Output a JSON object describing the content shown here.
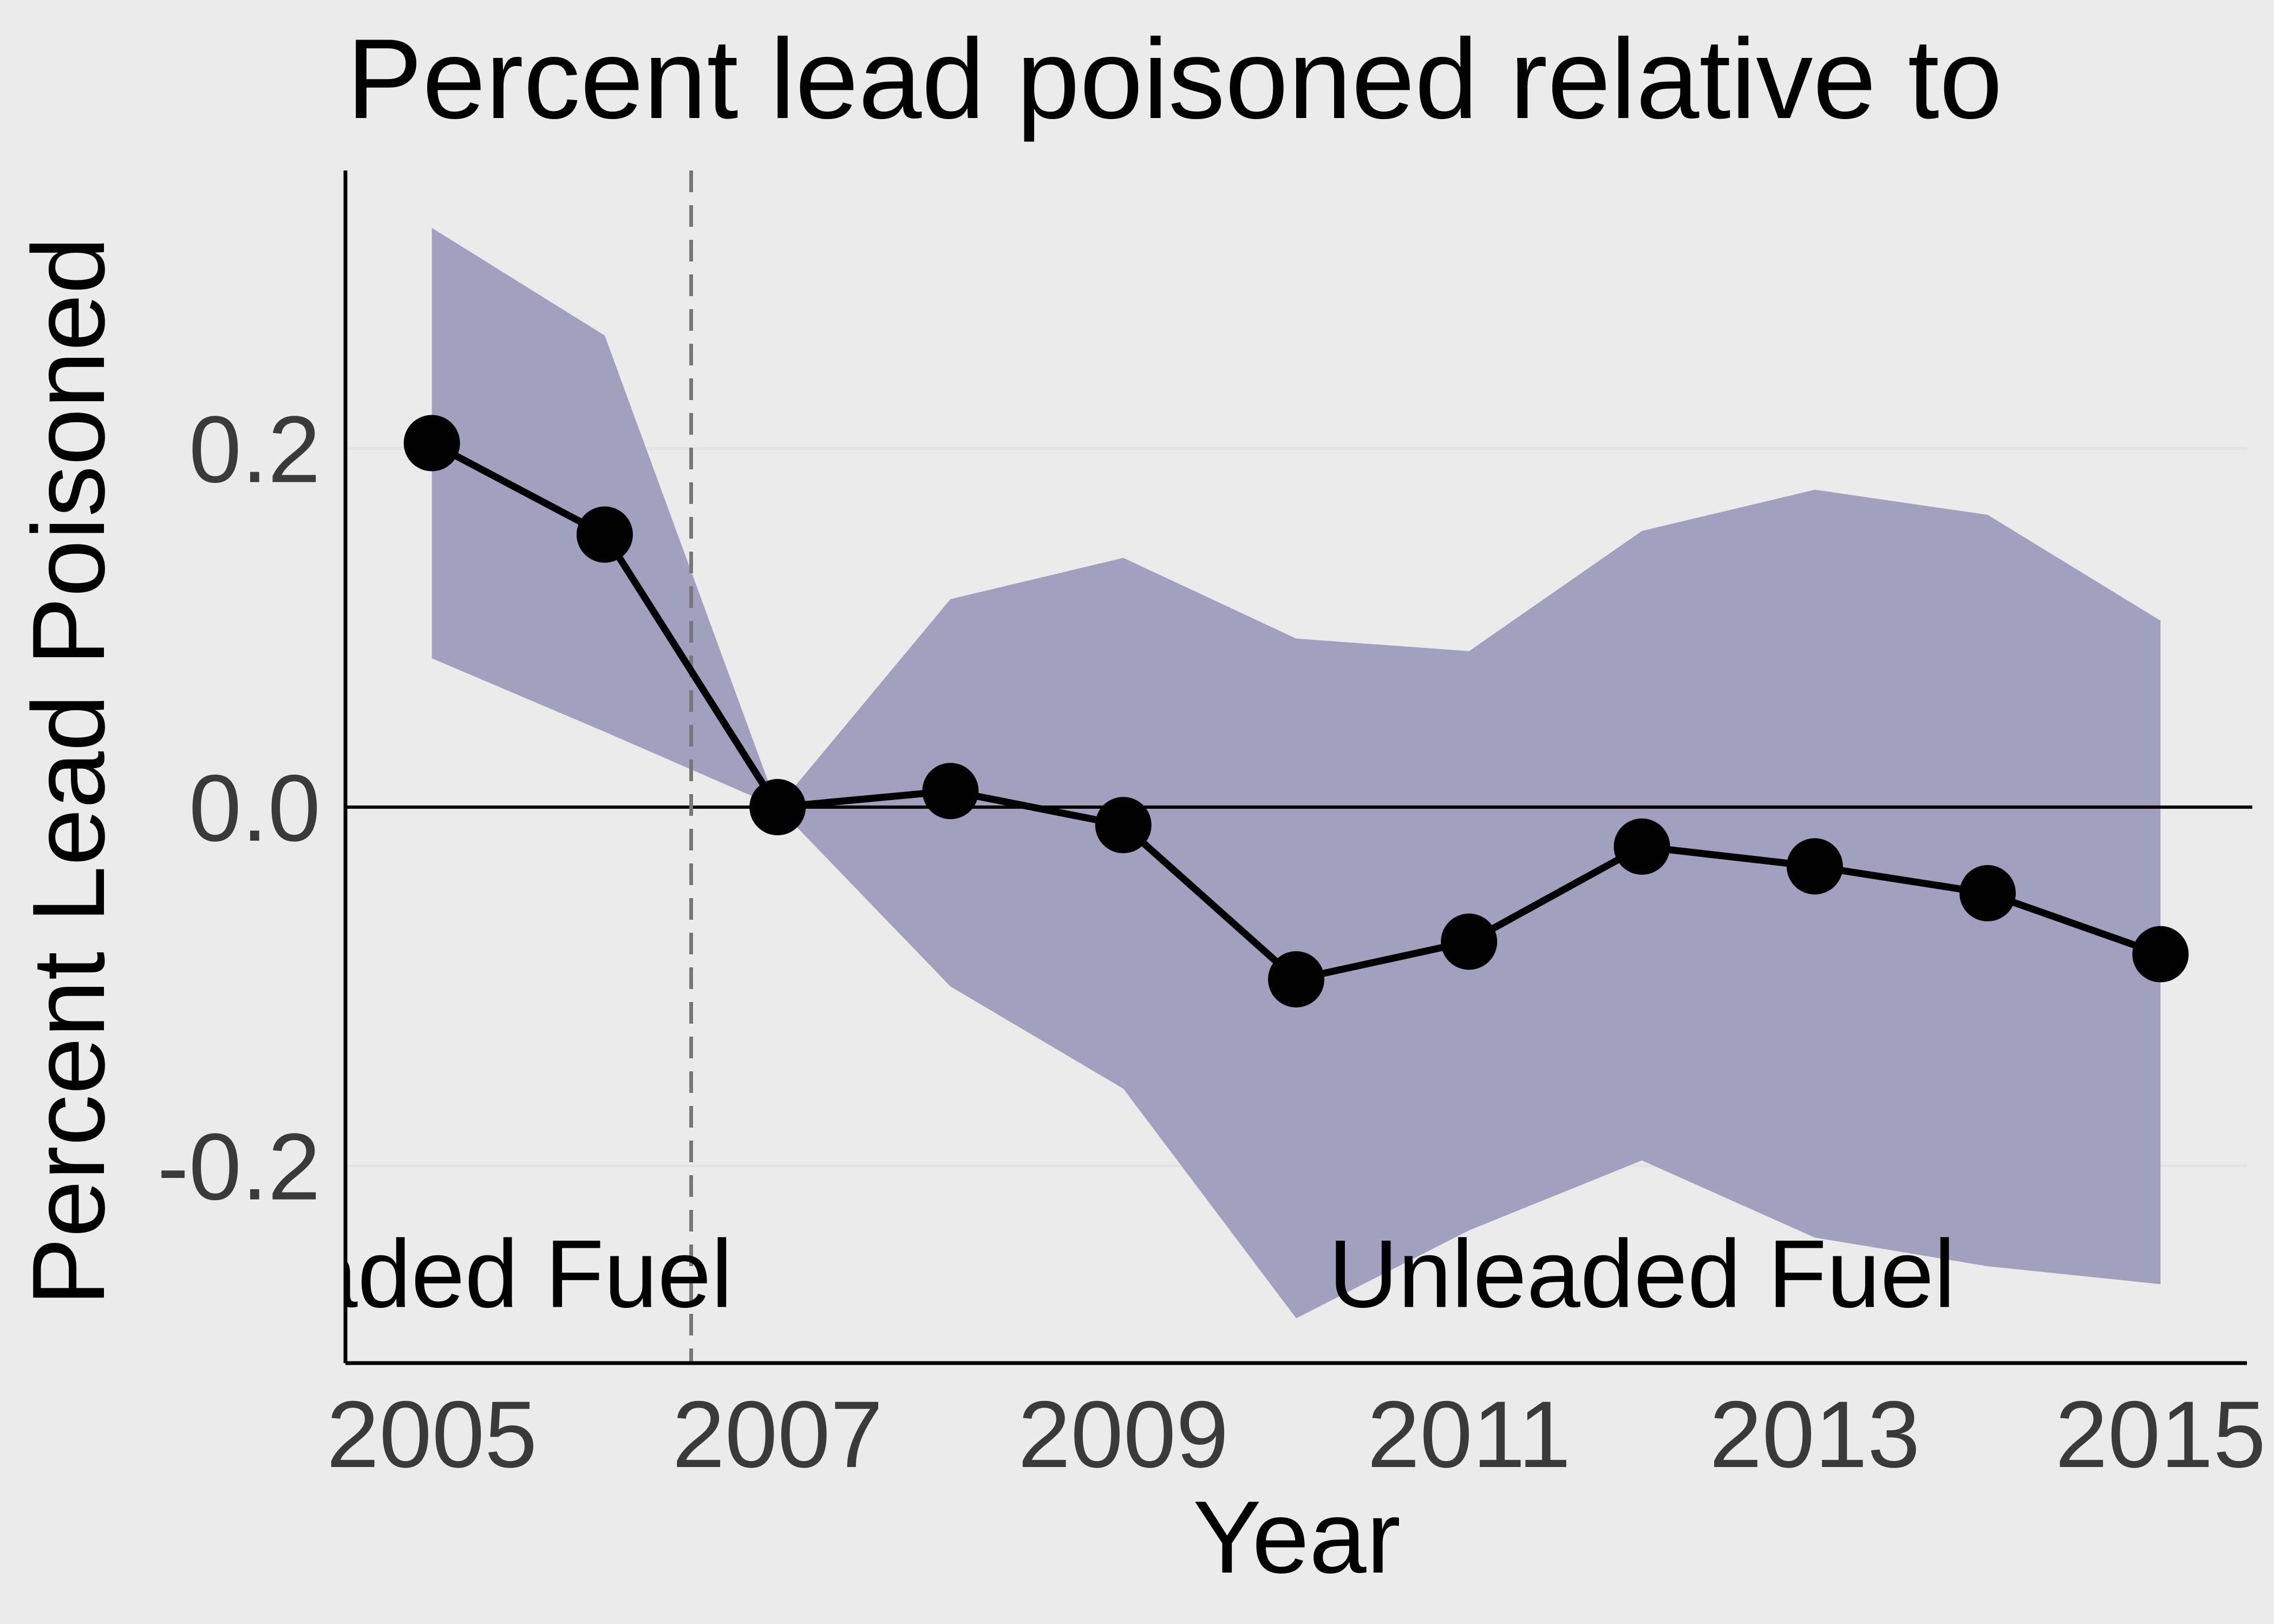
{
  "chart_data": {
    "type": "line",
    "title": "Percent lead poisoned relative to",
    "xlabel": "Year",
    "ylabel": "Percent Lead Poisoned",
    "x": [
      2005,
      2006,
      2007,
      2008,
      2009,
      2010,
      2011,
      2012,
      2013,
      2014,
      2015
    ],
    "series": [
      {
        "values": [
          0.203,
          0.152,
          0.0,
          0.009,
          -0.01,
          -0.096,
          -0.075,
          -0.022,
          -0.033,
          -0.048,
          -0.082
        ],
        "ci_upper": [
          0.323,
          0.263,
          0.0,
          0.116,
          0.139,
          0.094,
          0.087,
          0.154,
          0.177,
          0.163,
          0.104
        ],
        "ci_lower": [
          0.083,
          0.042,
          0.0,
          -0.1,
          -0.157,
          -0.285,
          -0.236,
          -0.197,
          -0.24,
          -0.256,
          -0.266
        ]
      }
    ],
    "xticks": [
      "2005",
      "2007",
      "2009",
      "2011",
      "2013",
      "2015"
    ],
    "yticks": [
      "-0.2",
      "0.0",
      "0.2"
    ],
    "xlim": [
      2004.5,
      2015.5
    ],
    "ylim": [
      -0.31,
      0.355
    ],
    "reference_vline_x": 2006.5,
    "reference_hline_y": 0,
    "annotations": [
      {
        "text": "aded Fuel",
        "x": 2005.5,
        "y": -0.26
      },
      {
        "text": "Unleaded Fuel",
        "x": 2012,
        "y": -0.26
      }
    ],
    "grid": "horizontal",
    "colors": {
      "background": "#ebebeb",
      "ribbon": "#a29fbf",
      "line": "#000000",
      "gridline": "#e4e4e4",
      "vline": "#777777"
    }
  }
}
